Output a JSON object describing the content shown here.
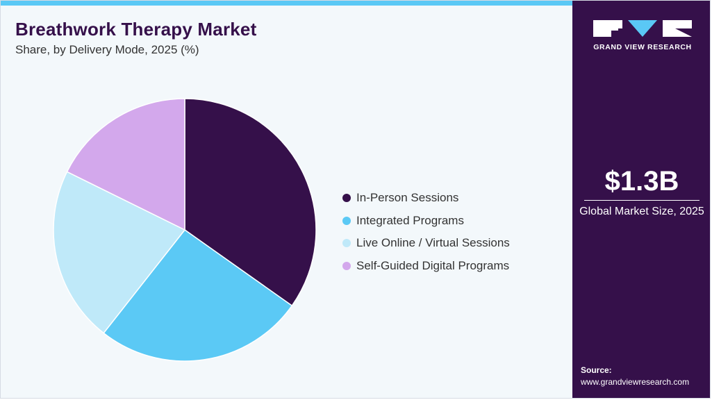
{
  "header": {
    "title": "Breathwork Therapy Market",
    "subtitle": "Share, by Delivery Mode, 2025 (%)"
  },
  "chart_data": {
    "type": "pie",
    "title": "Breathwork Therapy Market",
    "subtitle": "Share, by Delivery Mode, 2025 (%)",
    "categories": [
      "In-Person Sessions",
      "Integrated Programs",
      "Live Online / Virtual Sessions",
      "Self-Guided Digital Programs"
    ],
    "values": [
      34.8,
      25.8,
      21.7,
      17.7
    ],
    "colors": [
      "#35104a",
      "#5bc9f5",
      "#bfe9f9",
      "#d3a8ec"
    ],
    "start_angle_deg": 0,
    "direction": "clockwise",
    "legend_position": "right"
  },
  "sidebar": {
    "logo_text": "GRAND VIEW RESEARCH",
    "market_value": "$1.3B",
    "market_label": "Global Market Size, 2025",
    "source_label": "Source:",
    "source_url": "www.grandviewresearch.com"
  },
  "colors": {
    "brand_dark": "#35104a",
    "accent": "#5ac8f5",
    "background": "#f3f8fb"
  }
}
